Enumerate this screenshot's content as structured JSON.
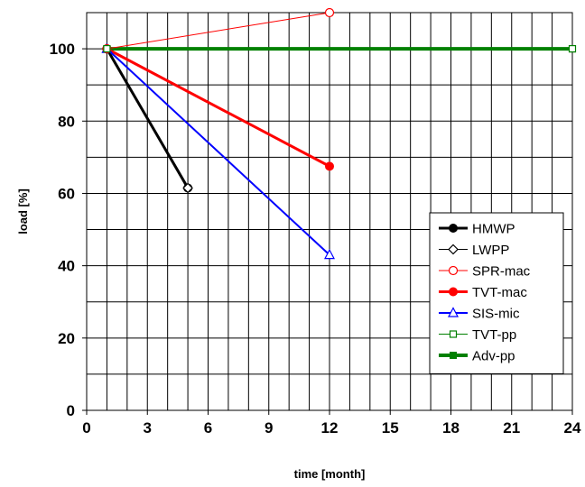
{
  "chart_data": {
    "type": "line",
    "xlabel": "time [month]",
    "ylabel": "load [%]",
    "xlim": [
      0,
      24
    ],
    "ylim": [
      0,
      110
    ],
    "xticks": [
      0,
      3,
      6,
      9,
      12,
      15,
      18,
      21,
      24
    ],
    "yticks": [
      0,
      20,
      40,
      60,
      80,
      100
    ],
    "grid": true,
    "legend_position": "bottom-right",
    "series": [
      {
        "name": "HMWP",
        "color": "#000000",
        "width": 3,
        "marker": "filled-circle",
        "points": [
          [
            1,
            100
          ],
          [
            5,
            61.5
          ]
        ]
      },
      {
        "name": "LWPP",
        "color": "#000000",
        "width": 1,
        "marker": "open-diamond",
        "points": [
          [
            1,
            100
          ],
          [
            5,
            61.5
          ]
        ]
      },
      {
        "name": "SPR-mac",
        "color": "#ff0000",
        "width": 1,
        "marker": "open-circle",
        "points": [
          [
            1,
            100
          ],
          [
            12,
            110
          ]
        ]
      },
      {
        "name": "TVT-mac",
        "color": "#ff0000",
        "width": 3,
        "marker": "filled-circle",
        "points": [
          [
            1,
            100
          ],
          [
            12,
            67.5
          ]
        ]
      },
      {
        "name": "SIS-mic",
        "color": "#0000ff",
        "width": 2,
        "marker": "open-triangle",
        "points": [
          [
            1,
            100
          ],
          [
            12,
            43
          ]
        ]
      },
      {
        "name": "TVT-pp",
        "color": "#008000",
        "width": 1,
        "marker": "open-square",
        "points": [
          [
            1,
            100
          ],
          [
            24,
            100
          ]
        ]
      },
      {
        "name": "Adv-pp",
        "color": "#008000",
        "width": 4,
        "marker": "filled-square",
        "points": [
          [
            1,
            100
          ],
          [
            24,
            100
          ]
        ]
      }
    ]
  }
}
